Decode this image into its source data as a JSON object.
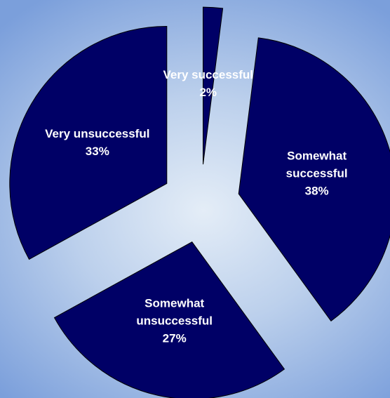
{
  "chart_data": {
    "type": "pie",
    "categories": [
      "Very successful",
      "Somewhat successful",
      "Somewhat unsuccessful",
      "Very unsuccessful"
    ],
    "values": [
      2,
      38,
      27,
      33
    ],
    "value_labels": [
      "2%",
      "38%",
      "27%",
      "33%"
    ],
    "color": "#000066"
  }
}
